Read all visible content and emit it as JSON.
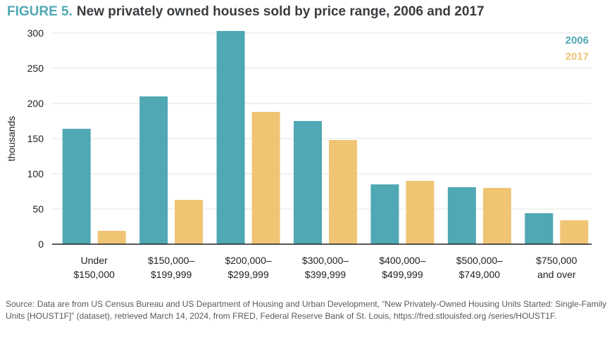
{
  "title": {
    "figure_label": "FIGURE 5.",
    "text": "New privately owned houses sold by price range, 2006 and 2017"
  },
  "source": "Source: Data are from US Census Bureau and US Department of Housing and Urban Development, “New Privately-Owned Housing Units Started: Single-Family Units [HOUST1F]” (dataset), retrieved March 14, 2024, from FRED, Federal Reserve Bank of St. Louis, https://fred.stlouisfed.org /series/HOUST1F.",
  "colors": {
    "s2006": "#4fa8b4",
    "s2017": "#efc574",
    "grid": "#e3e3e3",
    "axis": "#222222"
  },
  "chart_data": {
    "type": "bar",
    "categories": [
      [
        "Under",
        "$150,000"
      ],
      [
        "$150,000–",
        "$199,999"
      ],
      [
        "$200,000–",
        "$299,999"
      ],
      [
        "$300,000–",
        "$399,999"
      ],
      [
        "$400,000–",
        "$499,999"
      ],
      [
        "$500,000–",
        "$749,000"
      ],
      [
        "$750,000",
        "and over"
      ]
    ],
    "series": [
      {
        "name": "2006",
        "color": "#4fa8b4",
        "values": [
          164,
          210,
          303,
          175,
          85,
          81,
          44
        ]
      },
      {
        "name": "2017",
        "color": "#efc574",
        "values": [
          19,
          63,
          188,
          148,
          90,
          80,
          34
        ]
      }
    ],
    "ylabel": "thousands",
    "ylim": [
      0,
      300
    ],
    "yticks": [
      0,
      50,
      100,
      150,
      200,
      250,
      300
    ],
    "grid": true,
    "legend": "top-right"
  }
}
